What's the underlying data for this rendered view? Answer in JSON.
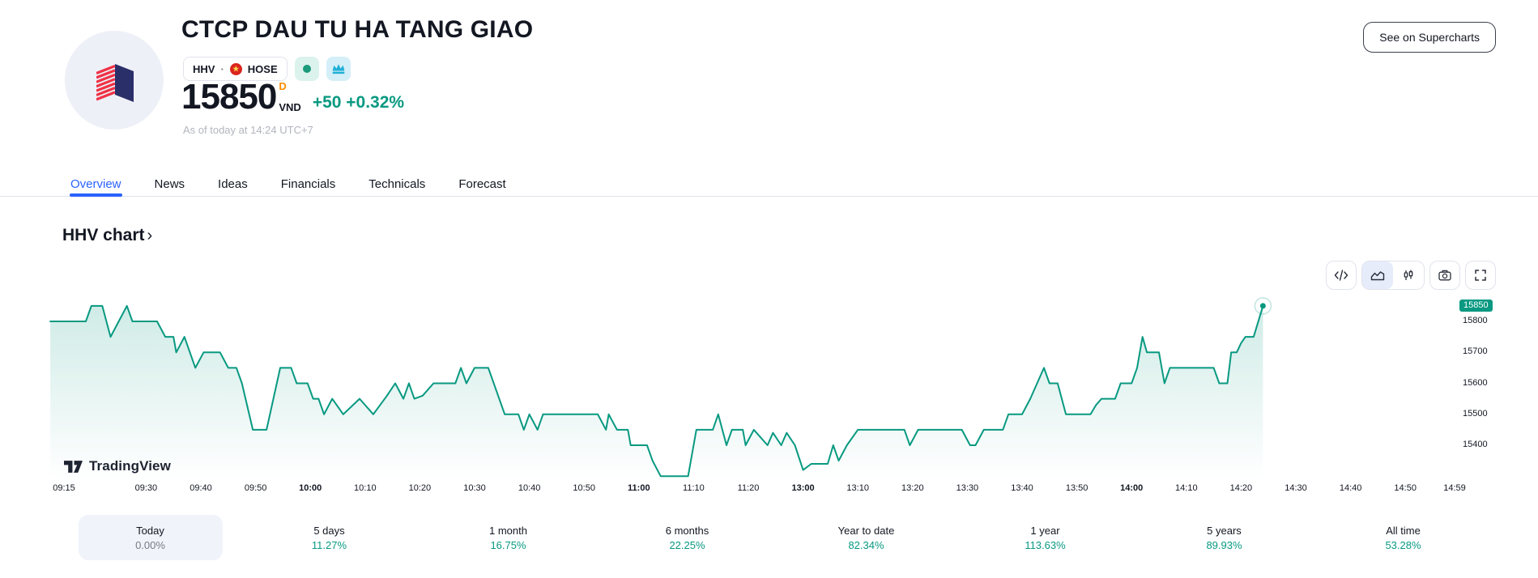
{
  "header": {
    "title": "CTCP DAU TU HA TANG GIAO",
    "symbol": "HHV",
    "separator": "·",
    "exchange": "HOSE",
    "price": "15850",
    "interval_label": "D",
    "currency": "VND",
    "change": "+50 +0.32%",
    "as_of": "As of today at 14:24 UTC+7",
    "supercharts_button": "See on Supercharts",
    "accent_green": "#089981",
    "accent_blue": "#2962ff",
    "interval_color": "#fb8c00"
  },
  "tabs": [
    {
      "label": "Overview",
      "active": true
    },
    {
      "label": "News"
    },
    {
      "label": "Ideas"
    },
    {
      "label": "Financials"
    },
    {
      "label": "Technicals"
    },
    {
      "label": "Forecast"
    }
  ],
  "chart_section": {
    "heading": "HHV chart",
    "chevron": "›",
    "watermark": "TradingView"
  },
  "toolbar": {
    "buttons": [
      {
        "icon": "code-icon"
      },
      {
        "icon": "area-chart-icon",
        "active": true
      },
      {
        "icon": "candlesticks-icon"
      },
      {
        "icon": "camera-icon"
      },
      {
        "icon": "fullscreen-icon"
      }
    ]
  },
  "periods": [
    {
      "label": "Today",
      "value": "0.00%",
      "selected": true,
      "neutral": true
    },
    {
      "label": "5 days",
      "value": "11.27%"
    },
    {
      "label": "1 month",
      "value": "16.75%"
    },
    {
      "label": "6 months",
      "value": "22.25%"
    },
    {
      "label": "Year to date",
      "value": "82.34%"
    },
    {
      "label": "1 year",
      "value": "113.63%"
    },
    {
      "label": "5 years",
      "value": "89.93%"
    },
    {
      "label": "All time",
      "value": "53.28%"
    }
  ],
  "chart_data": {
    "type": "area",
    "title": "HHV chart",
    "line_color": "#089981",
    "last_price": 15850,
    "last_price_label": "15850",
    "y_ticks": [
      15800,
      15700,
      15600,
      15500,
      15400
    ],
    "ylim": [
      15250,
      15900
    ],
    "x_unit": "minutes since 09:15 (lunch break 11:30–13:00 collapsed)",
    "x_labels": [
      {
        "text": "09:15",
        "min": 0
      },
      {
        "text": "09:30",
        "min": 15
      },
      {
        "text": "09:40",
        "min": 25
      },
      {
        "text": "09:50",
        "min": 35
      },
      {
        "text": "10:00",
        "min": 45,
        "bold": true
      },
      {
        "text": "10:10",
        "min": 55
      },
      {
        "text": "10:20",
        "min": 65
      },
      {
        "text": "10:30",
        "min": 75
      },
      {
        "text": "10:40",
        "min": 85
      },
      {
        "text": "10:50",
        "min": 95
      },
      {
        "text": "11:00",
        "min": 105,
        "bold": true
      },
      {
        "text": "11:10",
        "min": 115
      },
      {
        "text": "11:20",
        "min": 125
      },
      {
        "text": "13:00",
        "min": 135,
        "bold": true
      },
      {
        "text": "13:10",
        "min": 145
      },
      {
        "text": "13:20",
        "min": 155
      },
      {
        "text": "13:30",
        "min": 165
      },
      {
        "text": "13:40",
        "min": 175
      },
      {
        "text": "13:50",
        "min": 185
      },
      {
        "text": "14:00",
        "min": 195,
        "bold": true
      },
      {
        "text": "14:10",
        "min": 205
      },
      {
        "text": "14:20",
        "min": 215
      },
      {
        "text": "14:30",
        "min": 225
      },
      {
        "text": "14:40",
        "min": 235
      },
      {
        "text": "14:50",
        "min": 245
      },
      {
        "text": "14:59",
        "min": 254
      }
    ],
    "series": [
      [
        -2.5,
        15800
      ],
      [
        4,
        15800
      ],
      [
        5,
        15850
      ],
      [
        7,
        15850
      ],
      [
        8.5,
        15750
      ],
      [
        10,
        15800
      ],
      [
        11.5,
        15850
      ],
      [
        12.5,
        15800
      ],
      [
        17,
        15800
      ],
      [
        18.5,
        15750
      ],
      [
        20,
        15750
      ],
      [
        20.5,
        15700
      ],
      [
        22,
        15750
      ],
      [
        24,
        15650
      ],
      [
        25.5,
        15700
      ],
      [
        28.5,
        15700
      ],
      [
        30,
        15650
      ],
      [
        31.5,
        15650
      ],
      [
        32.5,
        15600
      ],
      [
        34.5,
        15450
      ],
      [
        37,
        15450
      ],
      [
        39.5,
        15650
      ],
      [
        41.5,
        15650
      ],
      [
        42.5,
        15600
      ],
      [
        44.5,
        15600
      ],
      [
        45.5,
        15550
      ],
      [
        46.5,
        15550
      ],
      [
        47.5,
        15500
      ],
      [
        49,
        15550
      ],
      [
        51,
        15500
      ],
      [
        54,
        15550
      ],
      [
        56.5,
        15500
      ],
      [
        59,
        15560
      ],
      [
        60.5,
        15600
      ],
      [
        62,
        15550
      ],
      [
        63,
        15600
      ],
      [
        64,
        15550
      ],
      [
        65.5,
        15560
      ],
      [
        67.5,
        15600
      ],
      [
        71.5,
        15600
      ],
      [
        72.5,
        15650
      ],
      [
        73.5,
        15600
      ],
      [
        75,
        15650
      ],
      [
        77.5,
        15650
      ],
      [
        80.5,
        15500
      ],
      [
        83,
        15500
      ],
      [
        84,
        15450
      ],
      [
        85,
        15500
      ],
      [
        86.5,
        15450
      ],
      [
        87.5,
        15500
      ],
      [
        97.5,
        15500
      ],
      [
        99,
        15450
      ],
      [
        99.5,
        15500
      ],
      [
        101,
        15450
      ],
      [
        103,
        15450
      ],
      [
        103.5,
        15400
      ],
      [
        106.5,
        15400
      ],
      [
        107.5,
        15350
      ],
      [
        109,
        15300
      ],
      [
        114,
        15300
      ],
      [
        115.5,
        15450
      ],
      [
        118.5,
        15450
      ],
      [
        119.5,
        15500
      ],
      [
        121,
        15400
      ],
      [
        122,
        15450
      ],
      [
        124,
        15450
      ],
      [
        124.5,
        15400
      ],
      [
        126,
        15450
      ],
      [
        128.5,
        15400
      ],
      [
        129.5,
        15440
      ],
      [
        131,
        15400
      ],
      [
        132,
        15440
      ],
      [
        133.5,
        15400
      ],
      [
        135,
        15320
      ],
      [
        136.5,
        15340
      ],
      [
        139.5,
        15340
      ],
      [
        140.5,
        15400
      ],
      [
        141.5,
        15350
      ],
      [
        143,
        15400
      ],
      [
        145,
        15450
      ],
      [
        153.5,
        15450
      ],
      [
        154.5,
        15400
      ],
      [
        156,
        15450
      ],
      [
        164,
        15450
      ],
      [
        165.5,
        15400
      ],
      [
        166.5,
        15400
      ],
      [
        168,
        15450
      ],
      [
        171.5,
        15450
      ],
      [
        172.5,
        15500
      ],
      [
        175,
        15500
      ],
      [
        176.5,
        15550
      ],
      [
        179,
        15650
      ],
      [
        180,
        15600
      ],
      [
        181.5,
        15600
      ],
      [
        183,
        15500
      ],
      [
        187.5,
        15500
      ],
      [
        188.5,
        15530
      ],
      [
        189.5,
        15550
      ],
      [
        192,
        15550
      ],
      [
        193,
        15600
      ],
      [
        195,
        15600
      ],
      [
        196,
        15650
      ],
      [
        197,
        15750
      ],
      [
        197.8,
        15700
      ],
      [
        200,
        15700
      ],
      [
        201,
        15600
      ],
      [
        202,
        15650
      ],
      [
        210,
        15650
      ],
      [
        211,
        15600
      ],
      [
        212.5,
        15600
      ],
      [
        213.2,
        15700
      ],
      [
        214.2,
        15700
      ],
      [
        215,
        15730
      ],
      [
        215.8,
        15750
      ],
      [
        217.3,
        15750
      ],
      [
        219,
        15850
      ]
    ]
  }
}
